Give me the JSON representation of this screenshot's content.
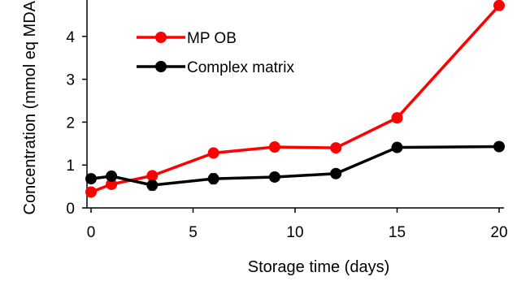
{
  "chart_data": {
    "type": "line",
    "title": "",
    "xlabel": "Storage time (days)",
    "ylabel": "Concentration (mmol eq MDA",
    "xlim": [
      0,
      20
    ],
    "ylim": [
      0,
      5
    ],
    "x_ticks": [
      0,
      5,
      10,
      15,
      20
    ],
    "y_ticks": [
      0,
      1,
      2,
      3,
      4
    ],
    "grid": false,
    "legend_position": "top-left",
    "series": [
      {
        "name": "MP OB",
        "color": "#ff0000",
        "x": [
          0,
          1,
          3,
          6,
          9,
          12,
          15,
          20
        ],
        "y": [
          0.37,
          0.55,
          0.75,
          1.28,
          1.42,
          1.4,
          2.1,
          4.72
        ],
        "error": [
          0.05,
          0.05,
          0.06,
          0.06,
          0.05,
          0.05,
          0.06,
          0.08
        ]
      },
      {
        "name": "Complex matrix",
        "color": "#000000",
        "x": [
          0,
          1,
          3,
          6,
          9,
          12,
          15,
          20
        ],
        "y": [
          0.68,
          0.74,
          0.53,
          0.68,
          0.72,
          0.8,
          1.41,
          1.43
        ],
        "error": [
          0.08,
          0.08,
          0.12,
          0.12,
          0.06,
          0.05,
          0.05,
          0.05
        ]
      }
    ]
  }
}
